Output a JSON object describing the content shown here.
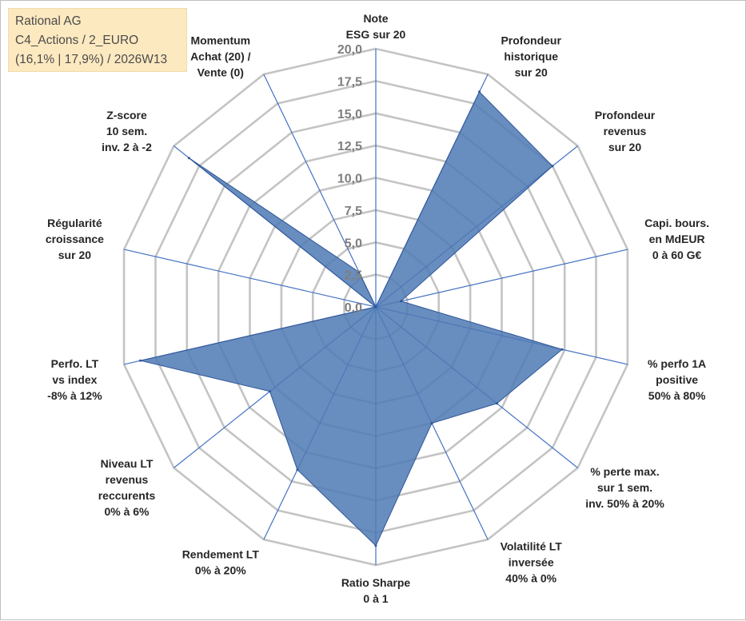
{
  "info_box": {
    "line1": "Rational AG",
    "line2": "C4_Actions / 2_EURO",
    "line3": "(16,1% | 17,9%) / 2026W13"
  },
  "chart_data": {
    "type": "radar",
    "title": "",
    "rlim": [
      0,
      20
    ],
    "ticks": [
      "0,0",
      "2,5",
      "5,0",
      "7,5",
      "10,0",
      "12,5",
      "15,0",
      "17,5",
      "20,0"
    ],
    "categories": [
      [
        "Note",
        "ESG sur 20"
      ],
      [
        "Profondeur",
        "historique",
        "sur 20"
      ],
      [
        "Profondeur",
        "revenus",
        "sur 20"
      ],
      [
        "Capi. bours.",
        "en MdEUR",
        "0 à 60 G€"
      ],
      [
        "% perfo 1A",
        "positive",
        "50% à 80%"
      ],
      [
        "% perte max.",
        "sur 1 sem.",
        "inv. 50% à 20%"
      ],
      [
        "Volatilité LT",
        "inversée",
        "40% à 0%"
      ],
      [
        "Ratio Sharpe",
        "0 à 1"
      ],
      [
        "Rendement LT",
        "0% à 20%"
      ],
      [
        "Niveau LT",
        "revenus",
        "reccurents",
        "0% à 6%"
      ],
      [
        "Perfo. LT",
        "vs index",
        "-8% à 12%"
      ],
      [
        "Régularité",
        "croissance",
        "sur 20"
      ],
      [
        "Z-score",
        "10 sem.",
        "inv. 2 à -2"
      ],
      [
        "Momentum",
        "Achat (20) /",
        "Vente (0)"
      ]
    ],
    "series": [
      {
        "name": "Rational AG",
        "values": [
          0,
          18.5,
          17.5,
          2.0,
          14.8,
          12.0,
          10.0,
          18.5,
          14.0,
          10.5,
          18.7,
          0,
          18.5,
          3.0
        ],
        "color": "#4f7ab4"
      }
    ],
    "colors": {
      "grid": "#c4c4c4",
      "spoke": "#4472c4",
      "fill": "#4f7ab4",
      "outline": "#2e5597"
    }
  }
}
